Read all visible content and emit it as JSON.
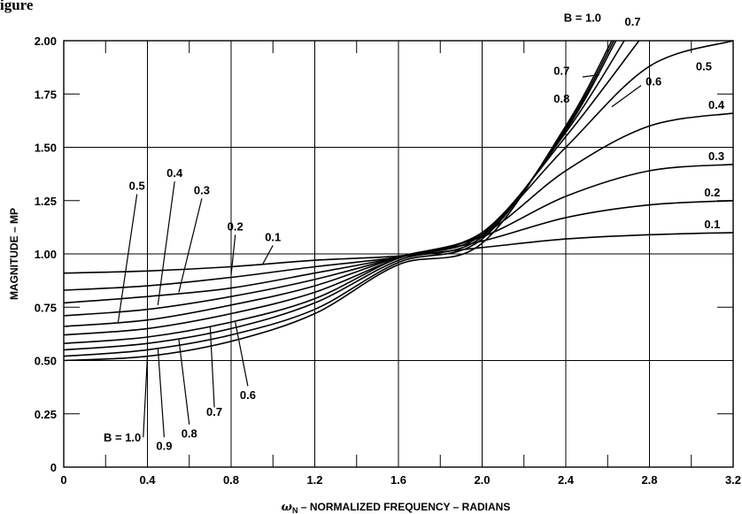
{
  "figure_label": "igure",
  "chart_data": {
    "type": "line",
    "xlim": [
      0,
      3.2
    ],
    "ylim": [
      0,
      2.0
    ],
    "x_ticks": [
      "0",
      "0.4",
      "0.8",
      "1.2",
      "1.6",
      "2.0",
      "2.4",
      "2.8",
      "3.2"
    ],
    "y_ticks": [
      "0",
      "0.25",
      "0.50",
      "0.75",
      "1.00",
      "1.25",
      "1.50",
      "1.75",
      "2.00"
    ],
    "x_tick_values": [
      0,
      0.4,
      0.8,
      1.2,
      1.6,
      2.0,
      2.4,
      2.8,
      3.2
    ],
    "y_tick_values": [
      0,
      0.25,
      0.5,
      0.75,
      1.0,
      1.25,
      1.5,
      1.75,
      2.0
    ],
    "xlabel_symbol": "ωN",
    "xlabel": "– NORMALIZED FREQUENCY – RADIANS",
    "ylabel": "MAGNITUDE – MP",
    "grid": true,
    "series": [
      {
        "name": "0.1",
        "points": [
          [
            0,
            0.91
          ],
          [
            0.4,
            0.92
          ],
          [
            0.8,
            0.94
          ],
          [
            1.2,
            0.97
          ],
          [
            1.6,
            0.99
          ],
          [
            2.0,
            1.03
          ],
          [
            2.4,
            1.07
          ],
          [
            2.8,
            1.09
          ],
          [
            3.2,
            1.1
          ]
        ]
      },
      {
        "name": "0.2",
        "points": [
          [
            0,
            0.83
          ],
          [
            0.4,
            0.85
          ],
          [
            0.8,
            0.89
          ],
          [
            1.2,
            0.94
          ],
          [
            1.6,
            0.985
          ],
          [
            2.0,
            1.06
          ],
          [
            2.4,
            1.17
          ],
          [
            2.8,
            1.23
          ],
          [
            3.2,
            1.25
          ]
        ]
      },
      {
        "name": "0.3",
        "points": [
          [
            0,
            0.77
          ],
          [
            0.4,
            0.8
          ],
          [
            0.8,
            0.84
          ],
          [
            1.2,
            0.91
          ],
          [
            1.6,
            0.985
          ],
          [
            2.0,
            1.08
          ],
          [
            2.4,
            1.27
          ],
          [
            2.8,
            1.39
          ],
          [
            3.2,
            1.42
          ]
        ]
      },
      {
        "name": "0.4",
        "points": [
          [
            0,
            0.71
          ],
          [
            0.4,
            0.74
          ],
          [
            0.8,
            0.8
          ],
          [
            1.2,
            0.88
          ],
          [
            1.6,
            0.985
          ],
          [
            2.0,
            1.09
          ],
          [
            2.4,
            1.39
          ],
          [
            2.8,
            1.6
          ],
          [
            3.2,
            1.66
          ]
        ]
      },
      {
        "name": "0.5",
        "points": [
          [
            0,
            0.66
          ],
          [
            0.4,
            0.69
          ],
          [
            0.8,
            0.76
          ],
          [
            1.2,
            0.85
          ],
          [
            1.6,
            0.985
          ],
          [
            2.0,
            1.1
          ],
          [
            2.4,
            1.5
          ],
          [
            2.8,
            1.88
          ],
          [
            3.2,
            2.0
          ]
        ]
      },
      {
        "name": "0.6",
        "points": [
          [
            0,
            0.62
          ],
          [
            0.4,
            0.65
          ],
          [
            0.8,
            0.72
          ],
          [
            1.2,
            0.82
          ],
          [
            1.6,
            0.98
          ],
          [
            2.0,
            1.1
          ],
          [
            2.4,
            1.55
          ],
          [
            2.75,
            2.0
          ]
        ]
      },
      {
        "name": "0.7",
        "points": [
          [
            0,
            0.58
          ],
          [
            0.4,
            0.61
          ],
          [
            0.8,
            0.68
          ],
          [
            1.2,
            0.79
          ],
          [
            1.6,
            0.98
          ],
          [
            2.0,
            1.09
          ],
          [
            2.4,
            1.57
          ],
          [
            2.68,
            2.0
          ]
        ]
      },
      {
        "name": "0.8",
        "points": [
          [
            0,
            0.55
          ],
          [
            0.4,
            0.58
          ],
          [
            0.8,
            0.65
          ],
          [
            1.2,
            0.77
          ],
          [
            1.6,
            0.97
          ],
          [
            2.0,
            1.08
          ],
          [
            2.4,
            1.58
          ],
          [
            2.64,
            2.0
          ]
        ]
      },
      {
        "name": "0.9",
        "points": [
          [
            0,
            0.52
          ],
          [
            0.4,
            0.55
          ],
          [
            0.8,
            0.62
          ],
          [
            1.2,
            0.74
          ],
          [
            1.6,
            0.96
          ],
          [
            2.0,
            1.07
          ],
          [
            2.4,
            1.59
          ],
          [
            2.63,
            2.0
          ]
        ]
      },
      {
        "name": "1.0",
        "points": [
          [
            0,
            0.5
          ],
          [
            0.4,
            0.52
          ],
          [
            0.8,
            0.59
          ],
          [
            1.2,
            0.72
          ],
          [
            1.6,
            0.95
          ],
          [
            2.0,
            1.05
          ],
          [
            2.4,
            1.6
          ],
          [
            2.62,
            2.0
          ]
        ]
      }
    ],
    "annotations": [
      {
        "text": "0.1",
        "x": 1.0,
        "y": 1.06
      },
      {
        "text": "0.2",
        "x": 0.82,
        "y": 1.11
      },
      {
        "text": "0.3",
        "x": 0.66,
        "y": 1.28
      },
      {
        "text": "0.4",
        "x": 0.53,
        "y": 1.36
      },
      {
        "text": "0.5",
        "x": 0.35,
        "y": 1.3
      },
      {
        "text": "0.6",
        "x": 0.88,
        "y": 0.32
      },
      {
        "text": "0.7",
        "x": 0.72,
        "y": 0.24
      },
      {
        "text": "0.8",
        "x": 0.6,
        "y": 0.14
      },
      {
        "text": "0.9",
        "x": 0.48,
        "y": 0.08
      },
      {
        "text": "B = 1.0",
        "x": 0.28,
        "y": 0.12
      },
      {
        "text": "B = 1.0",
        "x": 2.48,
        "y": 2.09
      },
      {
        "text": "0.7",
        "x": 2.72,
        "y": 2.07
      },
      {
        "text": "0.7",
        "x": 2.38,
        "y": 1.84
      },
      {
        "text": "0.8",
        "x": 2.38,
        "y": 1.71
      },
      {
        "text": "0.6",
        "x": 2.82,
        "y": 1.79
      },
      {
        "text": "0.5",
        "x": 3.06,
        "y": 1.86
      },
      {
        "text": "0.4",
        "x": 3.12,
        "y": 1.68
      },
      {
        "text": "0.3",
        "x": 3.12,
        "y": 1.44
      },
      {
        "text": "0.2",
        "x": 3.1,
        "y": 1.27
      },
      {
        "text": "0.1",
        "x": 3.1,
        "y": 1.12
      }
    ]
  }
}
